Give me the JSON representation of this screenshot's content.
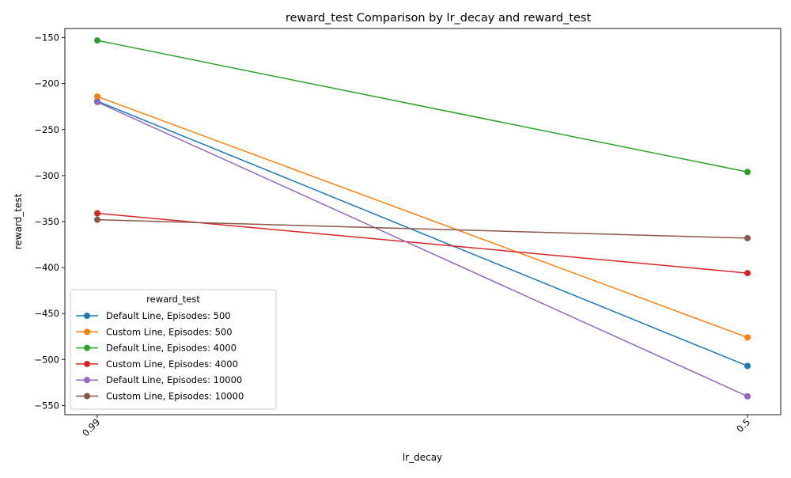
{
  "chart_data": {
    "type": "line",
    "title": "reward_test Comparison by lr_decay and reward_test",
    "xlabel": "lr_decay",
    "ylabel": "reward_test",
    "categories": [
      "0.99",
      "0.5"
    ],
    "ylim": [
      -560,
      -140
    ],
    "yticks": [
      -150,
      -200,
      -250,
      -300,
      -350,
      -400,
      -450,
      -500,
      -550
    ],
    "ytick_labels": [
      "−150",
      "−200",
      "−250",
      "−300",
      "−350",
      "−400",
      "−450",
      "−500",
      "−550"
    ],
    "grid": false,
    "legend": {
      "title": "reward_test",
      "placement": "lower-left"
    },
    "series": [
      {
        "name": "Default Line, Episodes: 500",
        "color": "#1f77b4",
        "values": [
          -219,
          -507
        ]
      },
      {
        "name": "Custom Line, Episodes: 500",
        "color": "#ff7f0e",
        "values": [
          -214,
          -476
        ]
      },
      {
        "name": "Default Line, Episodes: 4000",
        "color": "#2ca02c",
        "values": [
          -153,
          -296
        ]
      },
      {
        "name": "Custom Line, Episodes: 4000",
        "color": "#d62728",
        "values": [
          -341,
          -406
        ]
      },
      {
        "name": "Default Line, Episodes: 10000",
        "color": "#9467bd",
        "values": [
          -220,
          -540
        ]
      },
      {
        "name": "Custom Line, Episodes: 10000",
        "color": "#8c564b",
        "values": [
          -348,
          -368
        ]
      }
    ]
  }
}
